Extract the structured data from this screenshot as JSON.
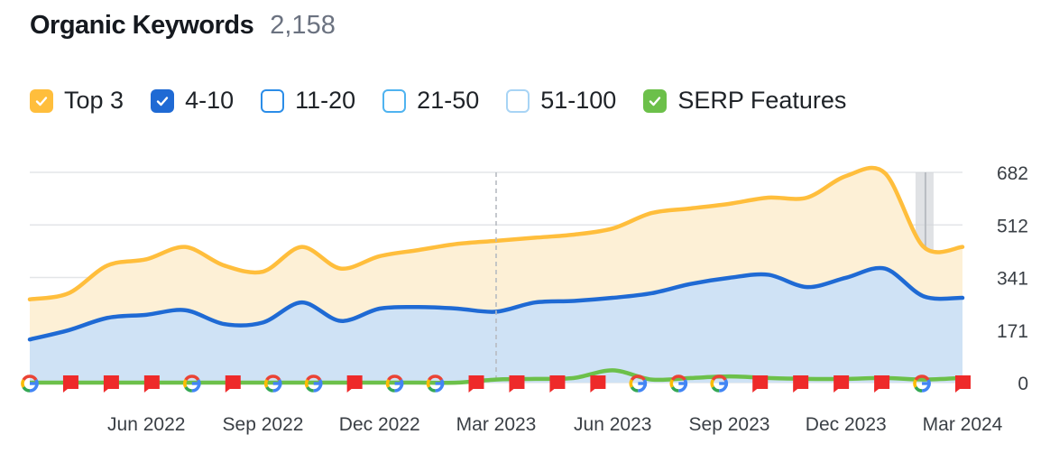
{
  "header": {
    "title": "Organic Keywords",
    "count": "2,158"
  },
  "legend": [
    {
      "label": "Top 3",
      "checked": true,
      "color": "#ffbe3c"
    },
    {
      "label": "4-10",
      "checked": true,
      "color": "#1f6ad4"
    },
    {
      "label": "11-20",
      "checked": false,
      "color": "#2b8de8"
    },
    {
      "label": "21-50",
      "checked": false,
      "color": "#4fb3f0"
    },
    {
      "label": "51-100",
      "checked": false,
      "color": "#a8d4f5"
    },
    {
      "label": "SERP Features",
      "checked": true,
      "color": "#6cc04a"
    }
  ],
  "chart_data": {
    "type": "area",
    "x": [
      "2022-03",
      "2022-04",
      "2022-05",
      "2022-06",
      "2022-07",
      "2022-08",
      "2022-09",
      "2022-10",
      "2022-11",
      "2022-12",
      "2023-01",
      "2023-02",
      "2023-03",
      "2023-04",
      "2023-05",
      "2023-06",
      "2023-07",
      "2023-08",
      "2023-09",
      "2023-10",
      "2023-11",
      "2023-12",
      "2024-01",
      "2024-02",
      "2024-03"
    ],
    "ylim": [
      0,
      682
    ],
    "y_ticks": [
      "682",
      "512",
      "341",
      "171",
      "0"
    ],
    "x_tick_labels": [
      "Jun 2022",
      "Sep 2022",
      "Dec 2022",
      "Mar 2023",
      "Jun 2023",
      "Sep 2023",
      "Dec 2023",
      "Mar 2024"
    ],
    "grid": true,
    "series": [
      {
        "name": "Top 3",
        "color": "#ffbe3c",
        "fill": "#fdf0d6",
        "values": [
          270,
          290,
          380,
          400,
          440,
          380,
          360,
          440,
          370,
          410,
          430,
          450,
          460,
          470,
          480,
          500,
          550,
          565,
          580,
          600,
          600,
          670,
          680,
          440,
          440
        ]
      },
      {
        "name": "4-10",
        "color": "#1f6ad4",
        "fill": "#cfe2f5",
        "values": [
          140,
          170,
          210,
          220,
          235,
          190,
          195,
          260,
          200,
          240,
          245,
          240,
          230,
          260,
          265,
          275,
          290,
          320,
          340,
          350,
          310,
          340,
          370,
          280,
          275
        ]
      },
      {
        "name": "SERP Features",
        "color": "#6cc04a",
        "values": [
          0,
          0,
          0,
          0,
          0,
          0,
          0,
          0,
          0,
          0,
          0,
          0,
          10,
          12,
          15,
          40,
          10,
          15,
          20,
          15,
          12,
          12,
          15,
          10,
          15
        ]
      }
    ],
    "markers": [
      "g",
      "f",
      "f",
      "f",
      "g",
      "f",
      "g",
      "g",
      "f",
      "g",
      "g",
      "f",
      "f",
      "f",
      "f",
      "g",
      "g",
      "g",
      "f",
      "f",
      "f",
      "f",
      "g",
      "f"
    ],
    "annotation_line": "2023-03",
    "highlight_band": "2024-02"
  }
}
